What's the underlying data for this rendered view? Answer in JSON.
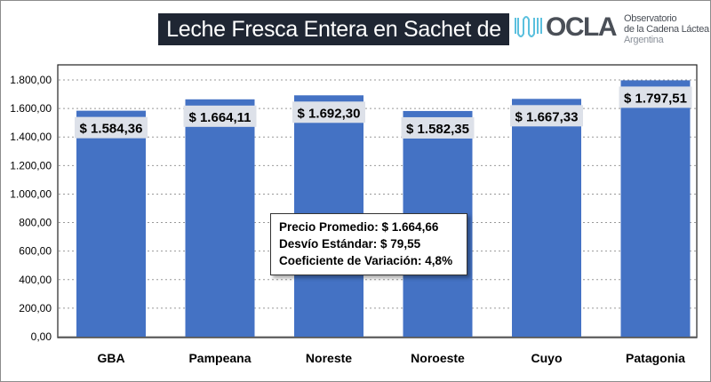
{
  "header": {
    "title": "Leche Fresca Entera en Sachet de litro",
    "logo": {
      "brand": "OCLA",
      "line1": "Observatorio",
      "line2": "de la Cadena Láctea",
      "line3": "Argentina"
    }
  },
  "stats": {
    "promedio": "Precio Promedio: $ 1.664,66",
    "desvio": "Desvío Estándar: $ 79,55",
    "coeficiente": "Coeficiente de Variación: 4,8%"
  },
  "colors": {
    "bar": "#4472c4",
    "label_bg": "#dde1e9",
    "title_bg": "#1f2633",
    "logo_accent": "#5bc0de"
  },
  "chart_data": {
    "type": "bar",
    "title": "Leche Fresca Entera en Sachet de litro",
    "categories": [
      "GBA",
      "Pampeana",
      "Noreste",
      "Noroeste",
      "Cuyo",
      "Patagonia"
    ],
    "values": [
      1584.36,
      1664.11,
      1692.3,
      1582.35,
      1667.33,
      1797.51
    ],
    "data_labels": [
      "$ 1.584,36",
      "$ 1.664,11",
      "$ 1.692,30",
      "$ 1.582,35",
      "$ 1.667,33",
      "$ 1.797,51"
    ],
    "yticks": [
      "0,00",
      "200,00",
      "400,00",
      "600,00",
      "800,00",
      "1.000,00",
      "1.200,00",
      "1.400,00",
      "1.600,00",
      "1.800,00"
    ],
    "ylim": [
      0,
      1800
    ],
    "grid": "horizontal-dotted",
    "legend": "none"
  }
}
